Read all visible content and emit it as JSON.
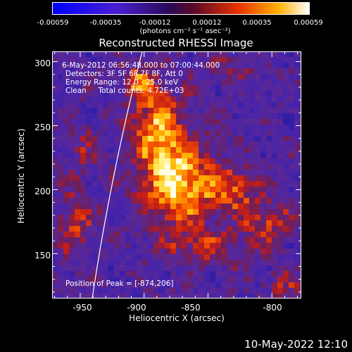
{
  "colorbar": {
    "tick_labels": [
      "-0.00059",
      "-0.00035",
      "-0.00012",
      "0.00012",
      "0.00035",
      "0.00059"
    ],
    "units_label": "(photons cm⁻² s⁻¹ asec⁻²)",
    "colormap": "blue-purple-red-yellow-white"
  },
  "title": "Reconstructed RHESSI Image",
  "annotations": {
    "time_range": "6-May-2012 06:56:48.000 to 07:00:44.000",
    "detectors": "Detectors: 3F 5F 6F 7F 8F, Att 0",
    "energy_range": "Energy Range: 12.0 - 25.0 keV",
    "clean": "Clean     Total counts: 4.72E+03",
    "peak": "Position of Peak = [-874,206]"
  },
  "axes": {
    "x_label": "Heliocentric X (arcsec)",
    "y_label": "Heliocentric Y (arcsec)",
    "x_ticks": [
      "-950",
      "-900",
      "-850",
      "-800"
    ],
    "y_ticks": [
      "300",
      "250",
      "200",
      "150"
    ],
    "x_range": [
      -972,
      -777
    ],
    "y_range": [
      115,
      308
    ]
  },
  "peak_position": [
    -874,
    206
  ],
  "timestamp": "10-May-2022 12:10"
}
